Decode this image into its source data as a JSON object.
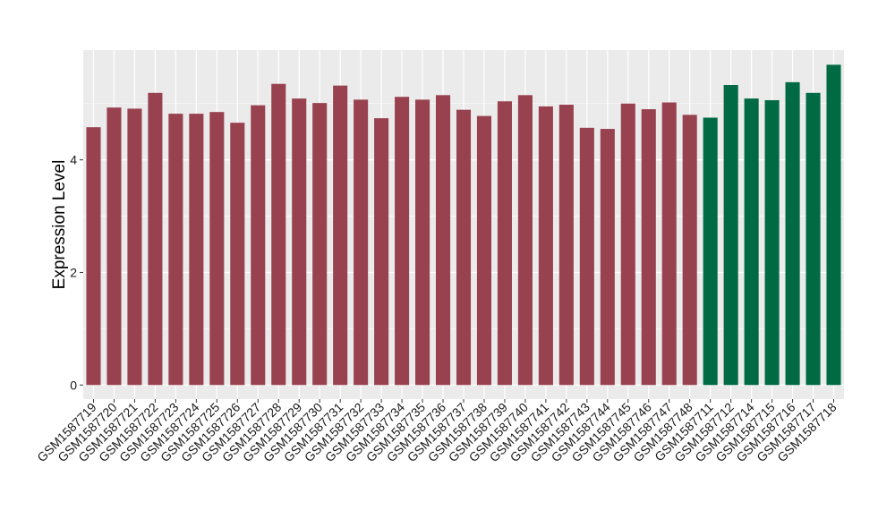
{
  "chart_data": {
    "type": "bar",
    "title": "",
    "xlabel": "",
    "ylabel": "Expression Level",
    "ylim": [
      -0.25,
      5.95
    ],
    "yticks": [
      0,
      2,
      4
    ],
    "grid": true,
    "legend": "none",
    "colors": {
      "panel_background": "#ebebeb",
      "grid": "#ffffff",
      "group_1": "#99424f",
      "group_2": "#006a44"
    },
    "categories": [
      "GSM1587719",
      "GSM1587720",
      "GSM1587721",
      "GSM1587722",
      "GSM1587723",
      "GSM1587724",
      "GSM1587725",
      "GSM1587726",
      "GSM1587727",
      "GSM1587728",
      "GSM1587729",
      "GSM1587730",
      "GSM1587731",
      "GSM1587732",
      "GSM1587733",
      "GSM1587734",
      "GSM1587735",
      "GSM1587736",
      "GSM1587737",
      "GSM1587738",
      "GSM1587739",
      "GSM1587740",
      "GSM1587741",
      "GSM1587742",
      "GSM1587743",
      "GSM1587744",
      "GSM1587745",
      "GSM1587746",
      "GSM1587747",
      "GSM1587748",
      "GSM1587711",
      "GSM1587712",
      "GSM1587714",
      "GSM1587715",
      "GSM1587716",
      "GSM1587717",
      "GSM1587718"
    ],
    "values": [
      4.58,
      4.93,
      4.91,
      5.19,
      4.82,
      4.82,
      4.85,
      4.66,
      4.97,
      5.35,
      5.09,
      5.01,
      5.32,
      5.07,
      4.74,
      5.12,
      5.07,
      5.15,
      4.89,
      4.78,
      5.04,
      5.15,
      4.95,
      4.98,
      4.57,
      4.55,
      5.0,
      4.9,
      5.02,
      4.8,
      4.75,
      5.33,
      5.09,
      5.06,
      5.38,
      5.19,
      5.69
    ],
    "bar_groups": [
      "group_1",
      "group_1",
      "group_1",
      "group_1",
      "group_1",
      "group_1",
      "group_1",
      "group_1",
      "group_1",
      "group_1",
      "group_1",
      "group_1",
      "group_1",
      "group_1",
      "group_1",
      "group_1",
      "group_1",
      "group_1",
      "group_1",
      "group_1",
      "group_1",
      "group_1",
      "group_1",
      "group_1",
      "group_1",
      "group_1",
      "group_1",
      "group_1",
      "group_1",
      "group_1",
      "group_2",
      "group_2",
      "group_2",
      "group_2",
      "group_2",
      "group_2",
      "group_2"
    ]
  }
}
